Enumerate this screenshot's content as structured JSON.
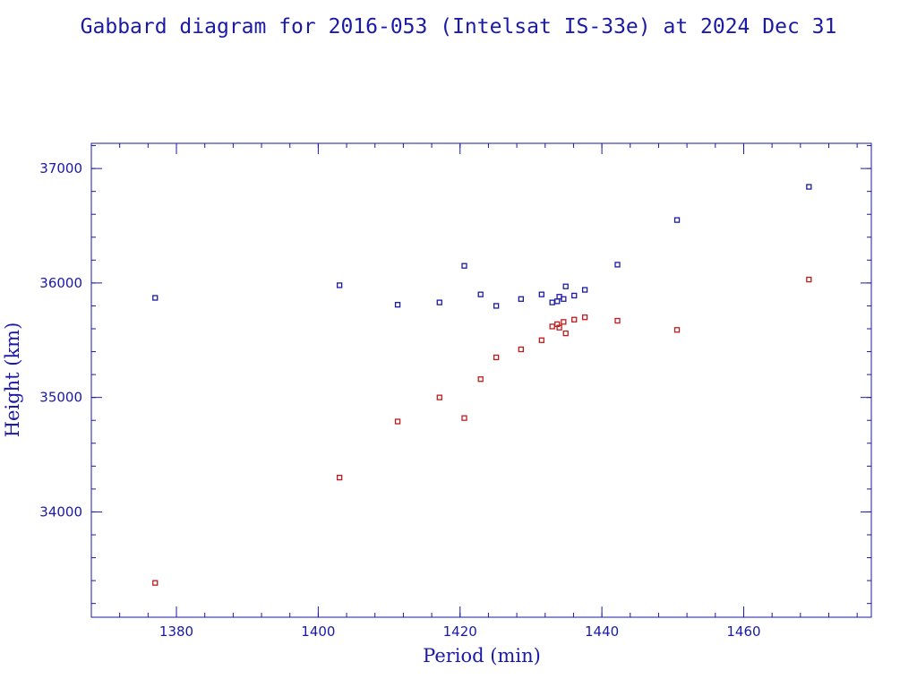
{
  "chart_data": {
    "type": "scatter",
    "title": "Gabbard diagram for 2016-053 (Intelsat IS-33e) at 2024 Dec 31",
    "xlabel": "Period (min)",
    "ylabel": "Height (km)",
    "xlim": [
      1368,
      1478
    ],
    "ylim": [
      33080,
      37220
    ],
    "xticks": [
      1380,
      1400,
      1420,
      1440,
      1460
    ],
    "yticks": [
      34000,
      35000,
      36000,
      37000
    ],
    "x_minor_step": 4,
    "y_minor_step": 200,
    "grid": false,
    "legend": "none",
    "series": [
      {
        "color": "#1a1aa6",
        "x": [
          1377.0,
          1403.0,
          1411.2,
          1417.1,
          1420.6,
          1422.9,
          1425.1,
          1428.6,
          1431.5,
          1433.0,
          1433.7,
          1434.0,
          1434.6,
          1434.9,
          1436.1,
          1437.6,
          1442.2,
          1450.6,
          1469.2
        ],
        "y": [
          35870,
          35980,
          35810,
          35830,
          36150,
          35900,
          35800,
          35860,
          35900,
          35830,
          35840,
          35880,
          35860,
          35970,
          35890,
          35940,
          36160,
          36550,
          36840
        ]
      },
      {
        "color": "#c01a1a",
        "x": [
          1377.0,
          1403.0,
          1411.2,
          1417.1,
          1420.6,
          1422.9,
          1425.1,
          1428.6,
          1431.5,
          1433.0,
          1433.7,
          1434.0,
          1434.6,
          1434.9,
          1436.1,
          1437.6,
          1442.2,
          1450.6,
          1469.2
        ],
        "y": [
          33380,
          34300,
          34790,
          35000,
          34820,
          35160,
          35350,
          35420,
          35500,
          35620,
          35640,
          35610,
          35660,
          35560,
          35680,
          35700,
          35670,
          35590,
          36030
        ]
      }
    ]
  }
}
